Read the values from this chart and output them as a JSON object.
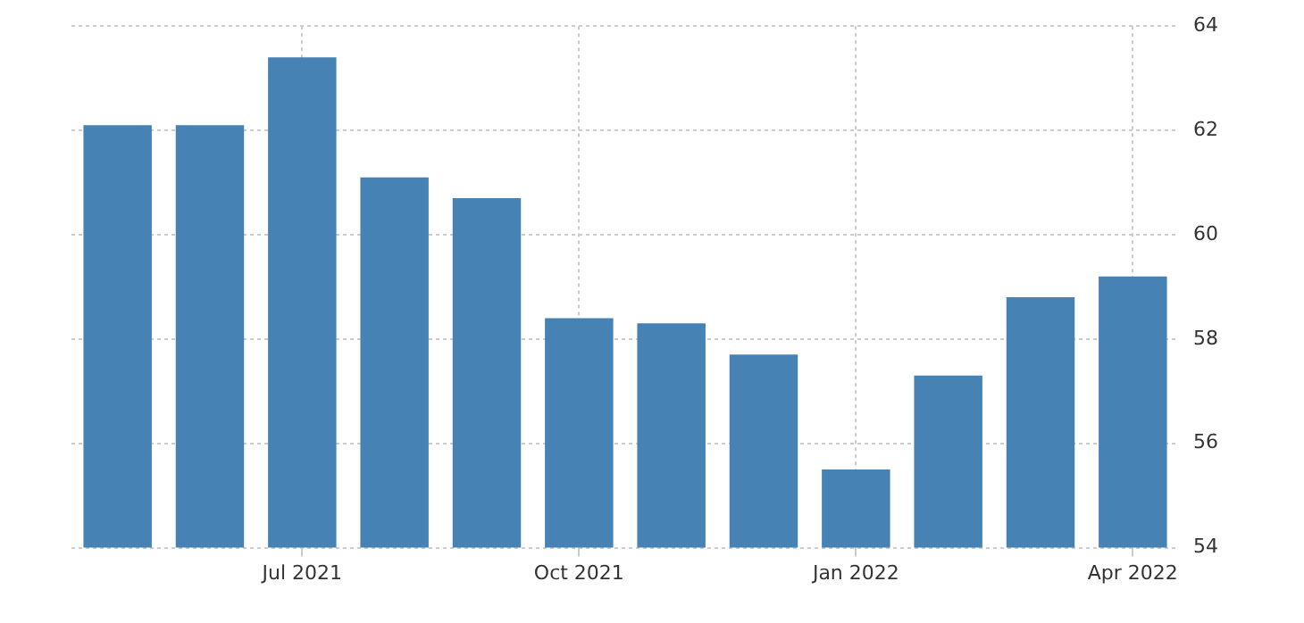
{
  "chart_data": {
    "type": "bar",
    "categories": [
      null,
      null,
      "Jul 2021",
      null,
      null,
      "Oct 2021",
      null,
      null,
      "Jan 2022",
      null,
      null,
      "Apr 2022"
    ],
    "values": [
      62.1,
      62.1,
      63.4,
      61.1,
      60.7,
      58.4,
      58.3,
      57.7,
      55.5,
      57.3,
      58.8,
      59.2
    ],
    "color": "#4682b4",
    "ylim": [
      54,
      64
    ],
    "yticks": [
      54,
      56,
      58,
      60,
      62,
      64
    ],
    "grid": true
  }
}
